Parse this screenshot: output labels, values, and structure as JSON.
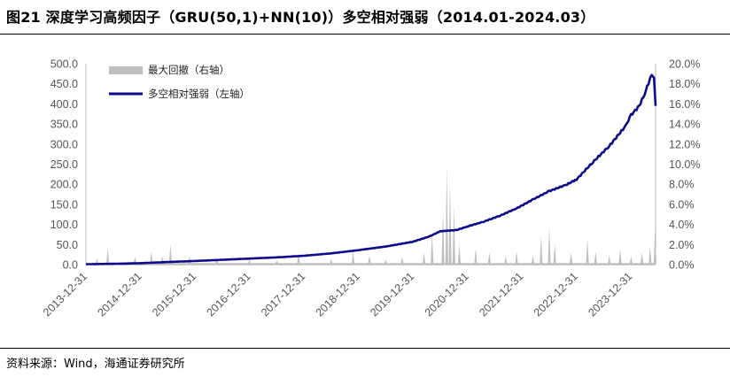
{
  "title": "图21 深度学习高频因子（GRU(50,1)+NN(10)）多空相对强弱（2014.01-2024.03）",
  "source": "资料来源：Wind，海通证券研究所",
  "chart_data": {
    "type": "line+area",
    "x_tick_labels": [
      "2013-12-31",
      "2014-12-31",
      "2015-12-31",
      "2016-12-31",
      "2017-12-31",
      "2018-12-31",
      "2019-12-31",
      "2020-12-31",
      "2021-12-31",
      "2022-12-31",
      "2023-12-31"
    ],
    "left_axis": {
      "min": 0,
      "max": 500,
      "step": 50,
      "tick_labels": [
        "0.0",
        "50.0",
        "100.0",
        "150.0",
        "200.0",
        "250.0",
        "300.0",
        "350.0",
        "400.0",
        "450.0",
        "500.0"
      ]
    },
    "right_axis": {
      "min": 0,
      "max": 0.2,
      "step": 0.02,
      "tick_labels": [
        "0.0%",
        "2.0%",
        "4.0%",
        "6.0%",
        "8.0%",
        "10.0%",
        "12.0%",
        "14.0%",
        "16.0%",
        "18.0%",
        "20.0%"
      ]
    },
    "legend": [
      {
        "label": "最大回撤（右轴）",
        "color": "#bfbfbf",
        "kind": "area"
      },
      {
        "label": "多空相对强弱（左轴）",
        "color": "#0b0b8c",
        "kind": "line"
      }
    ],
    "series": [
      {
        "name": "多空相对强弱（左轴）",
        "axis": "left",
        "color": "#0b0b8c",
        "points": [
          [
            2014.0,
            1.0
          ],
          [
            2014.5,
            2.0
          ],
          [
            2015.0,
            3.5
          ],
          [
            2015.5,
            6.5
          ],
          [
            2016.0,
            9.0
          ],
          [
            2016.5,
            12.0
          ],
          [
            2017.0,
            15.0
          ],
          [
            2017.5,
            18.0
          ],
          [
            2018.0,
            22.0
          ],
          [
            2018.5,
            28.0
          ],
          [
            2019.0,
            36.0
          ],
          [
            2019.5,
            45.0
          ],
          [
            2020.0,
            57.0
          ],
          [
            2020.3,
            70.0
          ],
          [
            2020.5,
            83.0
          ],
          [
            2020.8,
            86.0
          ],
          [
            2021.0,
            95.0
          ],
          [
            2021.3,
            107.0
          ],
          [
            2021.6,
            122.0
          ],
          [
            2021.9,
            140.0
          ],
          [
            2022.2,
            162.0
          ],
          [
            2022.5,
            183.0
          ],
          [
            2022.8,
            198.0
          ],
          [
            2023.0,
            212.0
          ],
          [
            2023.3,
            255.0
          ],
          [
            2023.6,
            295.0
          ],
          [
            2023.9,
            345.0
          ],
          [
            2024.0,
            372.0
          ],
          [
            2024.15,
            395.0
          ],
          [
            2024.25,
            425.0
          ],
          [
            2024.32,
            452.0
          ],
          [
            2024.38,
            472.0
          ],
          [
            2024.42,
            465.0
          ],
          [
            2024.45,
            395.0
          ]
        ]
      },
      {
        "name": "最大回撤（右轴）",
        "axis": "right",
        "color": "#bfbfbf",
        "spikes": [
          [
            2014.2,
            0.006
          ],
          [
            2014.4,
            0.016
          ],
          [
            2014.9,
            0.008
          ],
          [
            2015.2,
            0.013
          ],
          [
            2015.4,
            0.008
          ],
          [
            2015.55,
            0.02
          ],
          [
            2015.9,
            0.008
          ],
          [
            2016.4,
            0.005
          ],
          [
            2017.0,
            0.005
          ],
          [
            2017.5,
            0.004
          ],
          [
            2017.9,
            0.011
          ],
          [
            2018.5,
            0.006
          ],
          [
            2018.9,
            0.014
          ],
          [
            2019.2,
            0.009
          ],
          [
            2019.5,
            0.005
          ],
          [
            2019.8,
            0.007
          ],
          [
            2020.2,
            0.012
          ],
          [
            2020.35,
            0.03
          ],
          [
            2020.55,
            0.055
          ],
          [
            2020.62,
            0.098
          ],
          [
            2020.68,
            0.082
          ],
          [
            2020.75,
            0.058
          ],
          [
            2020.85,
            0.02
          ],
          [
            2021.15,
            0.016
          ],
          [
            2021.4,
            0.012
          ],
          [
            2021.7,
            0.008
          ],
          [
            2021.9,
            0.013
          ],
          [
            2022.2,
            0.009
          ],
          [
            2022.35,
            0.028
          ],
          [
            2022.5,
            0.037
          ],
          [
            2022.6,
            0.02
          ],
          [
            2022.9,
            0.012
          ],
          [
            2023.2,
            0.026
          ],
          [
            2023.35,
            0.013
          ],
          [
            2023.6,
            0.009
          ],
          [
            2023.8,
            0.016
          ],
          [
            2024.0,
            0.008
          ],
          [
            2024.2,
            0.012
          ],
          [
            2024.35,
            0.018
          ],
          [
            2024.44,
            0.034
          ]
        ]
      }
    ]
  }
}
